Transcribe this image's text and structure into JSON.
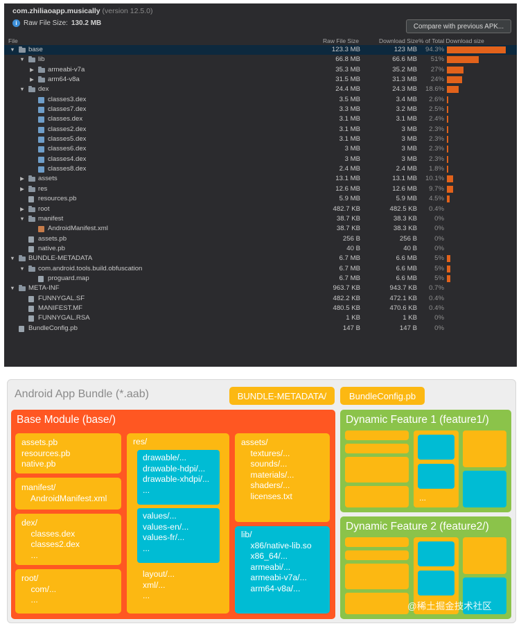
{
  "analyzer": {
    "package": "com.zhiliaoapp.musically",
    "version": "(version 12.5.0)",
    "raw_size_label": "Raw File Size:",
    "raw_size_value": "130.2 MB",
    "compare_button": "Compare with previous APK...",
    "columns": {
      "file": "File",
      "raw": "Raw File Size",
      "download": "Download Size",
      "pct": "% of Total Download size"
    },
    "rows": [
      {
        "name": "base",
        "depth": 0,
        "expand": "open",
        "icon": "folder",
        "raw": "123.3 MB",
        "dl": "123 MB",
        "pct": "94.3%",
        "bar": 94.3,
        "selected": true
      },
      {
        "name": "lib",
        "depth": 1,
        "expand": "open",
        "icon": "folder",
        "raw": "66.8 MB",
        "dl": "66.6 MB",
        "pct": "51%",
        "bar": 51
      },
      {
        "name": "armeabi-v7a",
        "depth": 2,
        "expand": "closed",
        "icon": "folder",
        "raw": "35.3 MB",
        "dl": "35.2 MB",
        "pct": "27%",
        "bar": 27
      },
      {
        "name": "arm64-v8a",
        "depth": 2,
        "expand": "closed",
        "icon": "folder",
        "raw": "31.5 MB",
        "dl": "31.3 MB",
        "pct": "24%",
        "bar": 24
      },
      {
        "name": "dex",
        "depth": 1,
        "expand": "open",
        "icon": "folder",
        "raw": "24.4 MB",
        "dl": "24.3 MB",
        "pct": "18.6%",
        "bar": 18.6
      },
      {
        "name": "classes3.dex",
        "depth": 2,
        "expand": "none",
        "icon": "dex",
        "raw": "3.5 MB",
        "dl": "3.4 MB",
        "pct": "2.6%",
        "bar": 2.6
      },
      {
        "name": "classes7.dex",
        "depth": 2,
        "expand": "none",
        "icon": "dex",
        "raw": "3.3 MB",
        "dl": "3.2 MB",
        "pct": "2.5%",
        "bar": 2.5
      },
      {
        "name": "classes.dex",
        "depth": 2,
        "expand": "none",
        "icon": "dex",
        "raw": "3.1 MB",
        "dl": "3.1 MB",
        "pct": "2.4%",
        "bar": 2.4
      },
      {
        "name": "classes2.dex",
        "depth": 2,
        "expand": "none",
        "icon": "dex",
        "raw": "3.1 MB",
        "dl": "3 MB",
        "pct": "2.3%",
        "bar": 2.3
      },
      {
        "name": "classes5.dex",
        "depth": 2,
        "expand": "none",
        "icon": "dex",
        "raw": "3.1 MB",
        "dl": "3 MB",
        "pct": "2.3%",
        "bar": 2.3
      },
      {
        "name": "classes6.dex",
        "depth": 2,
        "expand": "none",
        "icon": "dex",
        "raw": "3 MB",
        "dl": "3 MB",
        "pct": "2.3%",
        "bar": 2.3
      },
      {
        "name": "classes4.dex",
        "depth": 2,
        "expand": "none",
        "icon": "dex",
        "raw": "3 MB",
        "dl": "3 MB",
        "pct": "2.3%",
        "bar": 2.3
      },
      {
        "name": "classes8.dex",
        "depth": 2,
        "expand": "none",
        "icon": "dex",
        "raw": "2.4 MB",
        "dl": "2.4 MB",
        "pct": "1.8%",
        "bar": 1.8
      },
      {
        "name": "assets",
        "depth": 1,
        "expand": "closed",
        "icon": "folder",
        "raw": "13.1 MB",
        "dl": "13.1 MB",
        "pct": "10.1%",
        "bar": 10.1
      },
      {
        "name": "res",
        "depth": 1,
        "expand": "closed",
        "icon": "folder",
        "raw": "12.6 MB",
        "dl": "12.6 MB",
        "pct": "9.7%",
        "bar": 9.7
      },
      {
        "name": "resources.pb",
        "depth": 1,
        "expand": "none",
        "icon": "file",
        "raw": "5.9 MB",
        "dl": "5.9 MB",
        "pct": "4.5%",
        "bar": 4.5
      },
      {
        "name": "root",
        "depth": 1,
        "expand": "closed",
        "icon": "folder",
        "raw": "482.7 KB",
        "dl": "482.5 KB",
        "pct": "0.4%",
        "bar": 0
      },
      {
        "name": "manifest",
        "depth": 1,
        "expand": "open",
        "icon": "folder",
        "raw": "38.7 KB",
        "dl": "38.3 KB",
        "pct": "0%",
        "bar": 0
      },
      {
        "name": "AndroidManifest.xml",
        "depth": 2,
        "expand": "none",
        "icon": "xml",
        "raw": "38.7 KB",
        "dl": "38.3 KB",
        "pct": "0%",
        "bar": 0
      },
      {
        "name": "assets.pb",
        "depth": 1,
        "expand": "none",
        "icon": "file",
        "raw": "256 B",
        "dl": "256 B",
        "pct": "0%",
        "bar": 0
      },
      {
        "name": "native.pb",
        "depth": 1,
        "expand": "none",
        "icon": "file",
        "raw": "40 B",
        "dl": "40 B",
        "pct": "0%",
        "bar": 0
      },
      {
        "name": "BUNDLE-METADATA",
        "depth": 0,
        "expand": "open",
        "icon": "folder",
        "raw": "6.7 MB",
        "dl": "6.6 MB",
        "pct": "5%",
        "bar": 5
      },
      {
        "name": "com.android.tools.build.obfuscation",
        "depth": 1,
        "expand": "open",
        "icon": "folder",
        "raw": "6.7 MB",
        "dl": "6.6 MB",
        "pct": "5%",
        "bar": 5
      },
      {
        "name": "proguard.map",
        "depth": 2,
        "expand": "none",
        "icon": "file",
        "raw": "6.7 MB",
        "dl": "6.6 MB",
        "pct": "5%",
        "bar": 5
      },
      {
        "name": "META-INF",
        "depth": 0,
        "expand": "open",
        "icon": "folder",
        "raw": "963.7 KB",
        "dl": "943.7 KB",
        "pct": "0.7%",
        "bar": 0
      },
      {
        "name": "FUNNYGAL.SF",
        "depth": 1,
        "expand": "none",
        "icon": "file",
        "raw": "482.2 KB",
        "dl": "472.1 KB",
        "pct": "0.4%",
        "bar": 0
      },
      {
        "name": "MANIFEST.MF",
        "depth": 1,
        "expand": "none",
        "icon": "file",
        "raw": "480.5 KB",
        "dl": "470.6 KB",
        "pct": "0.4%",
        "bar": 0
      },
      {
        "name": "FUNNYGAL.RSA",
        "depth": 1,
        "expand": "none",
        "icon": "file",
        "raw": "1 KB",
        "dl": "1 KB",
        "pct": "0%",
        "bar": 0
      },
      {
        "name": "BundleConfig.pb",
        "depth": 0,
        "expand": "none",
        "icon": "file",
        "raw": "147 B",
        "dl": "147 B",
        "pct": "0%",
        "bar": 0
      }
    ]
  },
  "diagram": {
    "title": "Android App Bundle (*.aab)",
    "bundle_metadata": "BUNDLE-METADATA/",
    "bundle_config": "BundleConfig.pb",
    "base_title": "Base Module (base/)",
    "base_files": "assets.pb\nresources.pb\nnative.pb",
    "manifest": "manifest/\n    AndroidManifest.xml",
    "dex": "dex/\n    classes.dex\n    classes2.dex\n    ...",
    "root": "root/\n    com/...\n    ...",
    "res": "res/",
    "res_drawable": "drawable/...\ndrawable-hdpi/...\ndrawable-xhdpi/...\n...",
    "res_values": "values/...\nvalues-en/...\nvalues-fr/...\n...",
    "res_other": "layout/...\nxml/...\n...",
    "assets": "assets/\n    textures/...\n    sounds/...\n    materials/...\n    shaders/...\n    licenses.txt",
    "lib": "lib/\n    x86/native-lib.so\n    x86_64/...\n    armeabi/...\n    armeabi-v7a/...\n    arm64-v8a/...",
    "feature1_title": "Dynamic Feature 1 (feature1/)",
    "feature2_title": "Dynamic Feature 2 (feature2/)",
    "ellipsis": "...",
    "colors": {
      "orange": "#ff5722",
      "yellow": "#fcb812",
      "blue": "#00bcd4",
      "green": "#8bc34a"
    }
  },
  "watermark": "@稀土掘金技术社区"
}
